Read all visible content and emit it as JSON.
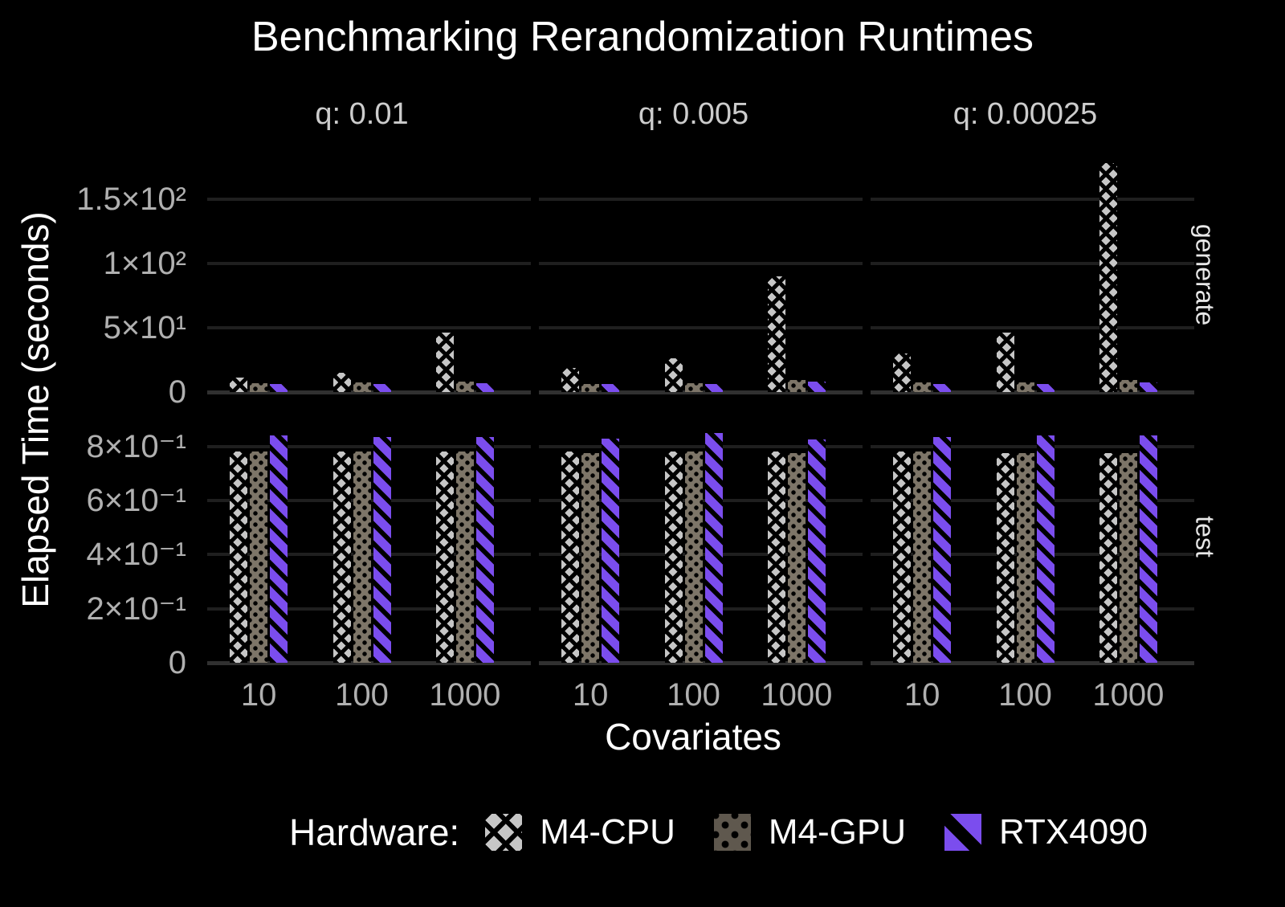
{
  "colors": {
    "background": "#000000",
    "text_primary": "#FFFFFF",
    "text_muted": "#B0B0B0",
    "facet_label": "#CCCCCC",
    "strip_label": "#E8E8E8",
    "gridline": "#1F1F1F",
    "baseline": "#303030",
    "m4_cpu": "#C6C6C6",
    "m4_gpu": "#7D7568",
    "rtx4090": "#7B4DEE"
  },
  "legend": {
    "title": "Hardware:"
  },
  "chart_data": {
    "type": "bar",
    "title": "Benchmarking Rerandomization Runtimes",
    "xlabel": "Covariates",
    "ylabel": "Elapsed Time (seconds)",
    "facet_cols": [
      "q: 0.01",
      "q: 0.005",
      "q: 0.00025"
    ],
    "facet_rows": [
      "generate",
      "test"
    ],
    "categories": [
      "10",
      "100",
      "1000"
    ],
    "series": [
      {
        "name": "M4-CPU",
        "color": "#C6C6C6",
        "pattern": "crosshatch"
      },
      {
        "name": "M4-GPU",
        "color": "#7D7568",
        "pattern": "dots"
      },
      {
        "name": "RTX4090",
        "color": "#7B4DEE",
        "pattern": "stripes"
      }
    ],
    "legend_position": "bottom",
    "grid": "horizontal-only",
    "rows": [
      {
        "facet": "generate",
        "scale": "linear",
        "ylim": [
          0,
          183
        ],
        "yticks": [
          {
            "value": 150,
            "label": "1.5×10²"
          },
          {
            "value": 100,
            "label": "1×10²"
          },
          {
            "value": 50,
            "label": "5×10¹"
          },
          {
            "value": 0,
            "label": "0"
          }
        ],
        "panels": [
          {
            "facet_col": "q: 0.01",
            "values": [
              [
                11,
                15,
                46
              ],
              [
                7,
                7.5,
                8
              ],
              [
                6,
                6.5,
                7
              ]
            ]
          },
          {
            "facet_col": "q: 0.005",
            "values": [
              [
                19,
                26,
                90
              ],
              [
                6.5,
                7,
                9.5
              ],
              [
                6,
                6.5,
                8
              ]
            ]
          },
          {
            "facet_col": "q: 0.00025",
            "values": [
              [
                30,
                46,
                178
              ],
              [
                7.5,
                7.5,
                9.5
              ],
              [
                6,
                6,
                7.5
              ]
            ]
          }
        ]
      },
      {
        "facet": "test",
        "scale": "linear",
        "ylim": [
          0,
          0.93
        ],
        "yticks": [
          {
            "value": 0.8,
            "label": "8×10⁻¹"
          },
          {
            "value": 0.6,
            "label": "6×10⁻¹"
          },
          {
            "value": 0.4,
            "label": "4×10⁻¹"
          },
          {
            "value": 0.2,
            "label": "2×10⁻¹"
          },
          {
            "value": 0,
            "label": "0"
          }
        ],
        "panels": [
          {
            "facet_col": "q: 0.01",
            "values": [
              [
                0.78,
                0.78,
                0.78
              ],
              [
                0.78,
                0.78,
                0.78
              ],
              [
                0.84,
                0.835,
                0.835
              ]
            ]
          },
          {
            "facet_col": "q: 0.005",
            "values": [
              [
                0.78,
                0.78,
                0.78
              ],
              [
                0.775,
                0.78,
                0.775
              ],
              [
                0.83,
                0.85,
                0.825
              ]
            ]
          },
          {
            "facet_col": "q: 0.00025",
            "values": [
              [
                0.78,
                0.775,
                0.775
              ],
              [
                0.78,
                0.775,
                0.775
              ],
              [
                0.835,
                0.84,
                0.84
              ]
            ]
          }
        ]
      }
    ]
  }
}
